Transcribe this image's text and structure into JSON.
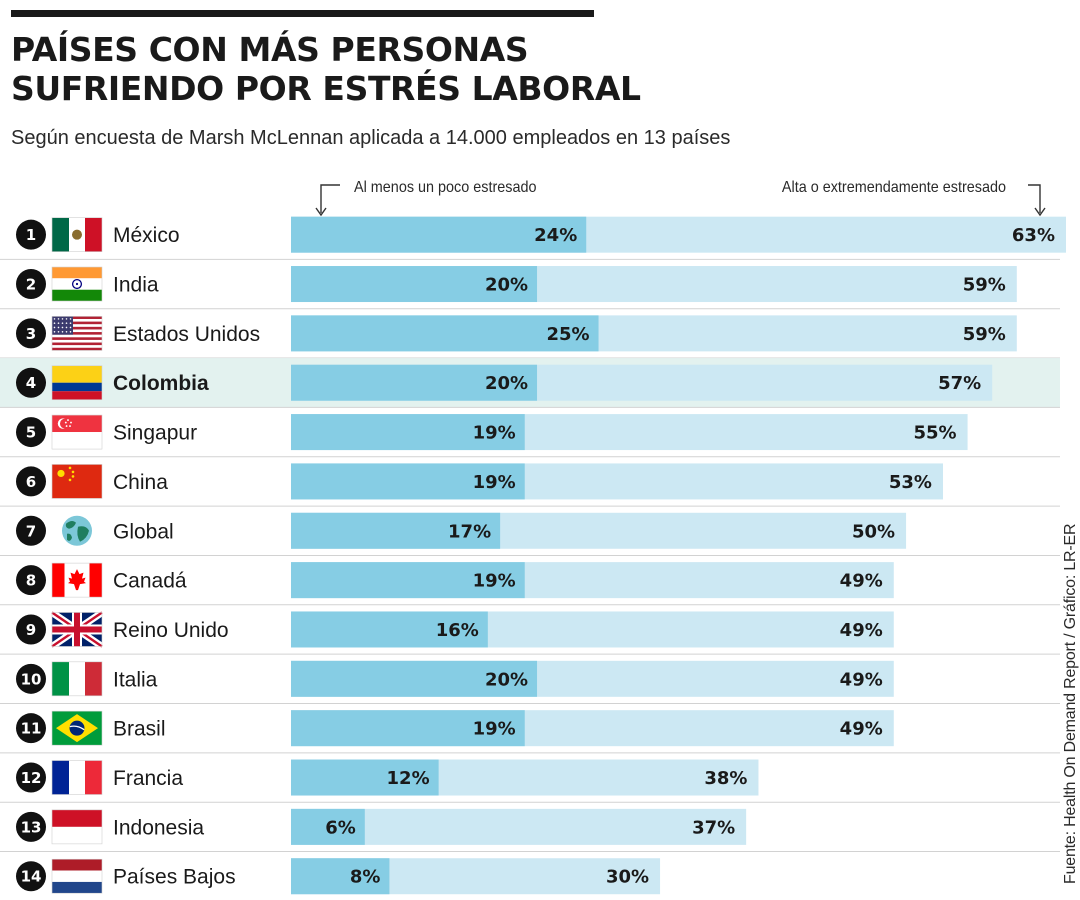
{
  "header": {
    "title_line1": "PAÍSES CON MÁS PERSONAS",
    "title_line2": "SUFRIENDO POR ESTRÉS LABORAL",
    "subtitle": "Según encuesta de Marsh McLennan aplicada a 14.000 empleados en 13 países"
  },
  "legend": {
    "low_label": "Al menos un poco estresado",
    "high_label": "Alta o extremendamente estresado"
  },
  "source": "Fuente: Health On Demand Report / Gráfico: LR-ER",
  "colors": {
    "low_bar": "#86cde4",
    "high_bar": "#cce8f3",
    "highlight_row": "#e3f2ef"
  },
  "chart_data": {
    "type": "bar",
    "orientation": "horizontal",
    "unit": "%",
    "xlim": [
      0,
      63
    ],
    "highlight": "Colombia",
    "rows": [
      {
        "rank": "1",
        "country": "México",
        "flag": "mexico-flag",
        "low": 24,
        "high": 63,
        "low_label": "24%",
        "high_label": "63%"
      },
      {
        "rank": "2",
        "country": "India",
        "flag": "india-flag",
        "low": 20,
        "high": 59,
        "low_label": "20%",
        "high_label": "59%"
      },
      {
        "rank": "3",
        "country": "Estados Unidos",
        "flag": "usa-flag",
        "low": 25,
        "high": 59,
        "low_label": "25%",
        "high_label": "59%"
      },
      {
        "rank": "4",
        "country": "Colombia",
        "flag": "colombia-flag",
        "low": 20,
        "high": 57,
        "low_label": "20%",
        "high_label": "57%"
      },
      {
        "rank": "5",
        "country": "Singapur",
        "flag": "singapore-flag",
        "low": 19,
        "high": 55,
        "low_label": "19%",
        "high_label": "55%"
      },
      {
        "rank": "6",
        "country": "China",
        "flag": "china-flag",
        "low": 19,
        "high": 53,
        "low_label": "19%",
        "high_label": "53%"
      },
      {
        "rank": "7",
        "country": "Global",
        "flag": "globe-icon",
        "low": 17,
        "high": 50,
        "low_label": "17%",
        "high_label": "50%"
      },
      {
        "rank": "8",
        "country": "Canadá",
        "flag": "canada-flag",
        "low": 19,
        "high": 49,
        "low_label": "19%",
        "high_label": "49%"
      },
      {
        "rank": "9",
        "country": "Reino Unido",
        "flag": "uk-flag",
        "low": 16,
        "high": 49,
        "low_label": "16%",
        "high_label": "49%"
      },
      {
        "rank": "10",
        "country": "Italia",
        "flag": "italy-flag",
        "low": 20,
        "high": 49,
        "low_label": "20%",
        "high_label": "49%"
      },
      {
        "rank": "11",
        "country": "Brasil",
        "flag": "brazil-flag",
        "low": 19,
        "high": 49,
        "low_label": "19%",
        "high_label": "49%"
      },
      {
        "rank": "12",
        "country": "Francia",
        "flag": "france-flag",
        "low": 12,
        "high": 38,
        "low_label": "12%",
        "high_label": "38%"
      },
      {
        "rank": "13",
        "country": "Indonesia",
        "flag": "indonesia-flag",
        "low": 6,
        "high": 37,
        "low_label": "6%",
        "high_label": "37%"
      },
      {
        "rank": "14",
        "country": "Países Bajos",
        "flag": "netherlands-flag",
        "low": 8,
        "high": 30,
        "low_label": "8%",
        "high_label": "30%"
      }
    ]
  }
}
